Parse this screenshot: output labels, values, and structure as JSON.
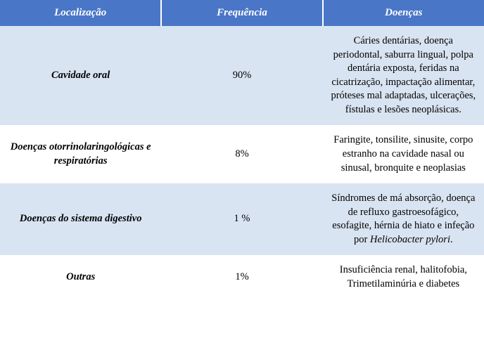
{
  "colors": {
    "header_bg": "#4a76c7",
    "header_text": "#ffffff",
    "row_alt_light": "#d9e4f2",
    "row_white": "#ffffff",
    "cell_text": "#000000"
  },
  "columns": [
    {
      "label": "Localização",
      "width": "42%"
    },
    {
      "label": "Frequência",
      "width": "18%"
    },
    {
      "label": "Doenças",
      "width": "40%"
    }
  ],
  "rows": [
    {
      "bg": "#d9e4f2",
      "loc": "Cavidade oral",
      "freq": "90%",
      "dis": "Cáries dentárias, doença periodontal, saburra lingual, polpa dentária exposta, feridas na cicatrização, impactação alimentar, próteses mal adaptadas, ulcerações, fístulas e lesões neoplásicas."
    },
    {
      "bg": "#ffffff",
      "loc": "Doenças otorrinolaringológicas e respiratórias",
      "freq": "8%",
      "dis": "Faringite, tonsilite, sinusite, corpo estranho na cavidade nasal ou sinusal, bronquite e neoplasias"
    },
    {
      "bg": "#d9e4f2",
      "loc": "Doenças do sistema digestivo",
      "freq": "1 %",
      "dis_html": "Síndromes de má absorção, doença de refluxo gastroesofágico, esofagite, hérnia de hiato e infeção por <i>Helicobacter pylori</i>."
    },
    {
      "bg": "#ffffff",
      "loc": "Outras",
      "freq": "1%",
      "dis": "Insuficiência renal, halitofobia, Trimetilaminúria e diabetes"
    }
  ]
}
